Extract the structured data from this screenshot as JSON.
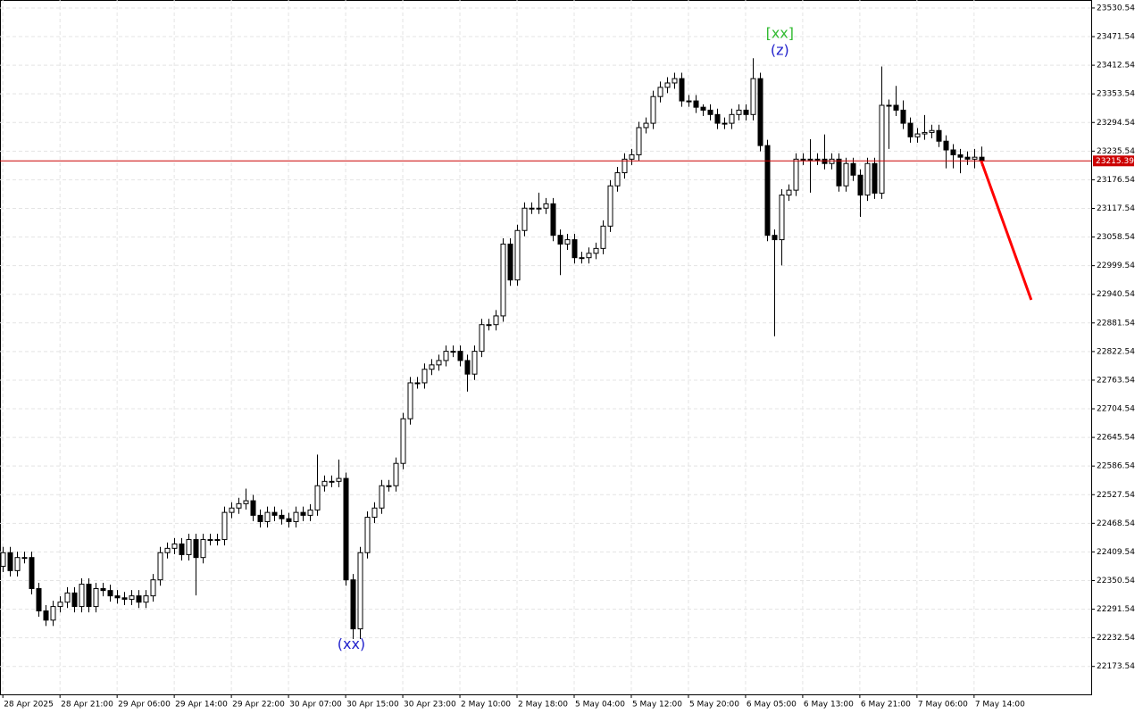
{
  "chart_data": {
    "type": "candlestick",
    "ylim": [
      22116,
      23547
    ],
    "yticks": [
      23530.54,
      23471.54,
      23412.54,
      23353.54,
      23294.54,
      23235.54,
      23176.54,
      23117.54,
      23058.54,
      22999.54,
      22940.54,
      22881.54,
      22822.54,
      22763.54,
      22704.54,
      22645.54,
      22586.54,
      22527.54,
      22468.54,
      22409.54,
      22350.54,
      22291.54,
      22232.54,
      22173.54
    ],
    "xlim": [
      -0.4,
      152.4
    ],
    "xticks": [
      {
        "value": 0,
        "label": "28 Apr 2025"
      },
      {
        "value": 8,
        "label": "28 Apr 21:00"
      },
      {
        "value": 16,
        "label": "29 Apr 06:00"
      },
      {
        "value": 24,
        "label": "29 Apr 14:00"
      },
      {
        "value": 32,
        "label": "29 Apr 22:00"
      },
      {
        "value": 40,
        "label": "30 Apr 07:00"
      },
      {
        "value": 48,
        "label": "30 Apr 15:00"
      },
      {
        "value": 56,
        "label": "30 Apr 23:00"
      },
      {
        "value": 64,
        "label": "2 May 10:00"
      },
      {
        "value": 72,
        "label": "2 May 18:00"
      },
      {
        "value": 80,
        "label": "5 May 04:00"
      },
      {
        "value": 88,
        "label": "5 May 12:00"
      },
      {
        "value": 96,
        "label": "5 May 20:00"
      },
      {
        "value": 104,
        "label": "6 May 05:00"
      },
      {
        "value": 112,
        "label": "6 May 13:00"
      },
      {
        "value": 120,
        "label": "6 May 21:00"
      },
      {
        "value": 128,
        "label": "7 May 06:00"
      },
      {
        "value": 136,
        "label": "7 May 14:00"
      }
    ],
    "grid": true,
    "up_color": "#ffffff",
    "down_color": "#000000",
    "open": [
      22380,
      22408,
      22371,
      22398,
      22398,
      22334,
      22288,
      22269,
      22297,
      22306,
      22325,
      22297,
      22343,
      22297,
      22334,
      22330,
      22319,
      22315,
      22312,
      22319,
      22306,
      22319,
      22352,
      22408,
      22417,
      22426,
      22404,
      22435,
      22398,
      22435,
      22435,
      22435,
      22491,
      22500,
      22509,
      22515,
      22485,
      22472,
      22491,
      22485,
      22478,
      22472,
      22491,
      22485,
      22496,
      22546,
      22555,
      22555,
      22561,
      22352,
      22251,
      22408,
      22481,
      22500,
      22546,
      22546,
      22592,
      22684,
      22758,
      22758,
      22786,
      22795,
      22804,
      22823,
      22823,
      22804,
      22776,
      22823,
      22878,
      22878,
      22896,
      23044,
      22970,
      23072,
      23118,
      23118,
      23118,
      23127,
      23062,
      23044,
      23053,
      23016,
      23016,
      23025,
      23035,
      23081,
      23164,
      23191,
      23219,
      23228,
      23284,
      23293,
      23348,
      23367,
      23376,
      23385,
      23339,
      23339,
      23326,
      23320,
      23311,
      23293,
      23293,
      23311,
      23320,
      23311,
      23385,
      23247,
      23062,
      23053,
      23145,
      23155,
      23219,
      23219,
      23219,
      23219,
      23210,
      23219,
      23164,
      23210,
      23186,
      23145,
      23210,
      23149,
      23330,
      23330,
      23320,
      23293,
      23265,
      23271,
      23274,
      23278,
      23256,
      23238,
      23228,
      23223,
      23219,
      23223
    ],
    "high": [
      22420,
      22420,
      22410,
      22410,
      22410,
      22346,
      22300,
      22309,
      22318,
      22337,
      22337,
      22355,
      22355,
      22346,
      22346,
      22342,
      22331,
      22327,
      22331,
      22331,
      22331,
      22364,
      22420,
      22429,
      22438,
      22438,
      22447,
      22447,
      22447,
      22447,
      22447,
      22503,
      22512,
      22521,
      22540,
      22527,
      22497,
      22503,
      22503,
      22497,
      22490,
      22503,
      22503,
      22508,
      22610,
      22567,
      22567,
      22600,
      22573,
      22364,
      22420,
      22493,
      22512,
      22558,
      22558,
      22604,
      22696,
      22770,
      22770,
      22798,
      22807,
      22816,
      22835,
      22835,
      22835,
      22816,
      22835,
      22890,
      22890,
      22908,
      23056,
      23056,
      23084,
      23130,
      23130,
      23150,
      23139,
      23139,
      23074,
      23065,
      23065,
      23028,
      23037,
      23047,
      23093,
      23176,
      23203,
      23231,
      23240,
      23296,
      23305,
      23360,
      23379,
      23388,
      23397,
      23397,
      23351,
      23351,
      23332,
      23332,
      23323,
      23305,
      23323,
      23332,
      23332,
      23427,
      23397,
      23259,
      23074,
      23157,
      23167,
      23231,
      23231,
      23260,
      23231,
      23270,
      23231,
      23231,
      23222,
      23222,
      23198,
      23222,
      23222,
      23410,
      23342,
      23370,
      23340,
      23305,
      23283,
      23310,
      23290,
      23290,
      23268,
      23250,
      23240,
      23235,
      23240,
      23245
    ],
    "low": [
      22368,
      22359,
      22359,
      22386,
      22322,
      22276,
      22257,
      22257,
      22285,
      22294,
      22285,
      22285,
      22285,
      22285,
      22318,
      22307,
      22303,
      22300,
      22300,
      22294,
      22294,
      22307,
      22340,
      22396,
      22405,
      22392,
      22392,
      22320,
      22386,
      22423,
      22423,
      22423,
      22479,
      22488,
      22497,
      22473,
      22460,
      22460,
      22473,
      22466,
      22460,
      22460,
      22473,
      22473,
      22484,
      22534,
      22543,
      22543,
      22340,
      22230,
      22230,
      22396,
      22469,
      22488,
      22534,
      22534,
      22580,
      22672,
      22746,
      22746,
      22774,
      22783,
      22792,
      22811,
      22792,
      22740,
      22764,
      22811,
      22866,
      22866,
      22884,
      22958,
      22958,
      23060,
      23106,
      23106,
      23106,
      23050,
      22980,
      23032,
      23004,
      23004,
      23004,
      23013,
      23023,
      23069,
      23152,
      23179,
      23207,
      23216,
      23272,
      23281,
      23336,
      23355,
      23364,
      23327,
      23327,
      23314,
      23308,
      23299,
      23281,
      23281,
      23281,
      23299,
      23299,
      23299,
      23235,
      23050,
      22854,
      23000,
      23133,
      23143,
      23207,
      23150,
      23207,
      23198,
      23198,
      23152,
      23152,
      23174,
      23100,
      23133,
      23137,
      23137,
      23240,
      23308,
      23281,
      23253,
      23253,
      23259,
      23262,
      23244,
      23200,
      23200,
      23190,
      23207,
      23200,
      23205
    ],
    "close": [
      22408,
      22371,
      22398,
      22398,
      22334,
      22288,
      22269,
      22297,
      22306,
      22325,
      22297,
      22343,
      22297,
      22334,
      22330,
      22319,
      22315,
      22312,
      22319,
      22306,
      22319,
      22352,
      22408,
      22417,
      22426,
      22404,
      22435,
      22398,
      22435,
      22435,
      22435,
      22491,
      22500,
      22509,
      22515,
      22485,
      22472,
      22491,
      22485,
      22478,
      22472,
      22491,
      22485,
      22496,
      22546,
      22555,
      22555,
      22561,
      22352,
      22251,
      22408,
      22481,
      22500,
      22546,
      22546,
      22592,
      22684,
      22758,
      22758,
      22786,
      22795,
      22804,
      22823,
      22823,
      22804,
      22776,
      22823,
      22878,
      22878,
      22896,
      23044,
      22970,
      23072,
      23118,
      23118,
      23118,
      23127,
      23062,
      23044,
      23053,
      23016,
      23016,
      23025,
      23035,
      23081,
      23164,
      23191,
      23219,
      23228,
      23284,
      23293,
      23348,
      23367,
      23376,
      23385,
      23339,
      23339,
      23326,
      23320,
      23311,
      23293,
      23293,
      23311,
      23320,
      23311,
      23385,
      23247,
      23062,
      23053,
      23145,
      23155,
      23219,
      23219,
      23219,
      23219,
      23210,
      23219,
      23164,
      23210,
      23186,
      23145,
      23210,
      23149,
      23330,
      23330,
      23320,
      23293,
      23265,
      23271,
      23274,
      23278,
      23256,
      23238,
      23228,
      23223,
      23219,
      23223,
      23215.39
    ],
    "last_price": 23215.39,
    "last_price_color": "#cc0000",
    "forecast": {
      "color": "#ff0000",
      "x": [
        137,
        144
      ],
      "values": [
        23215.39,
        22929
      ]
    },
    "annotations": [
      {
        "text": "[xx]",
        "color": "#33bb33",
        "x": 108.8,
        "y": 23477
      },
      {
        "text": "(z)",
        "color": "#2222cc",
        "x": 108.8,
        "y": 23442
      },
      {
        "text": "(xx)",
        "color": "#2222cc",
        "x": 48.8,
        "y": 22218
      }
    ]
  }
}
